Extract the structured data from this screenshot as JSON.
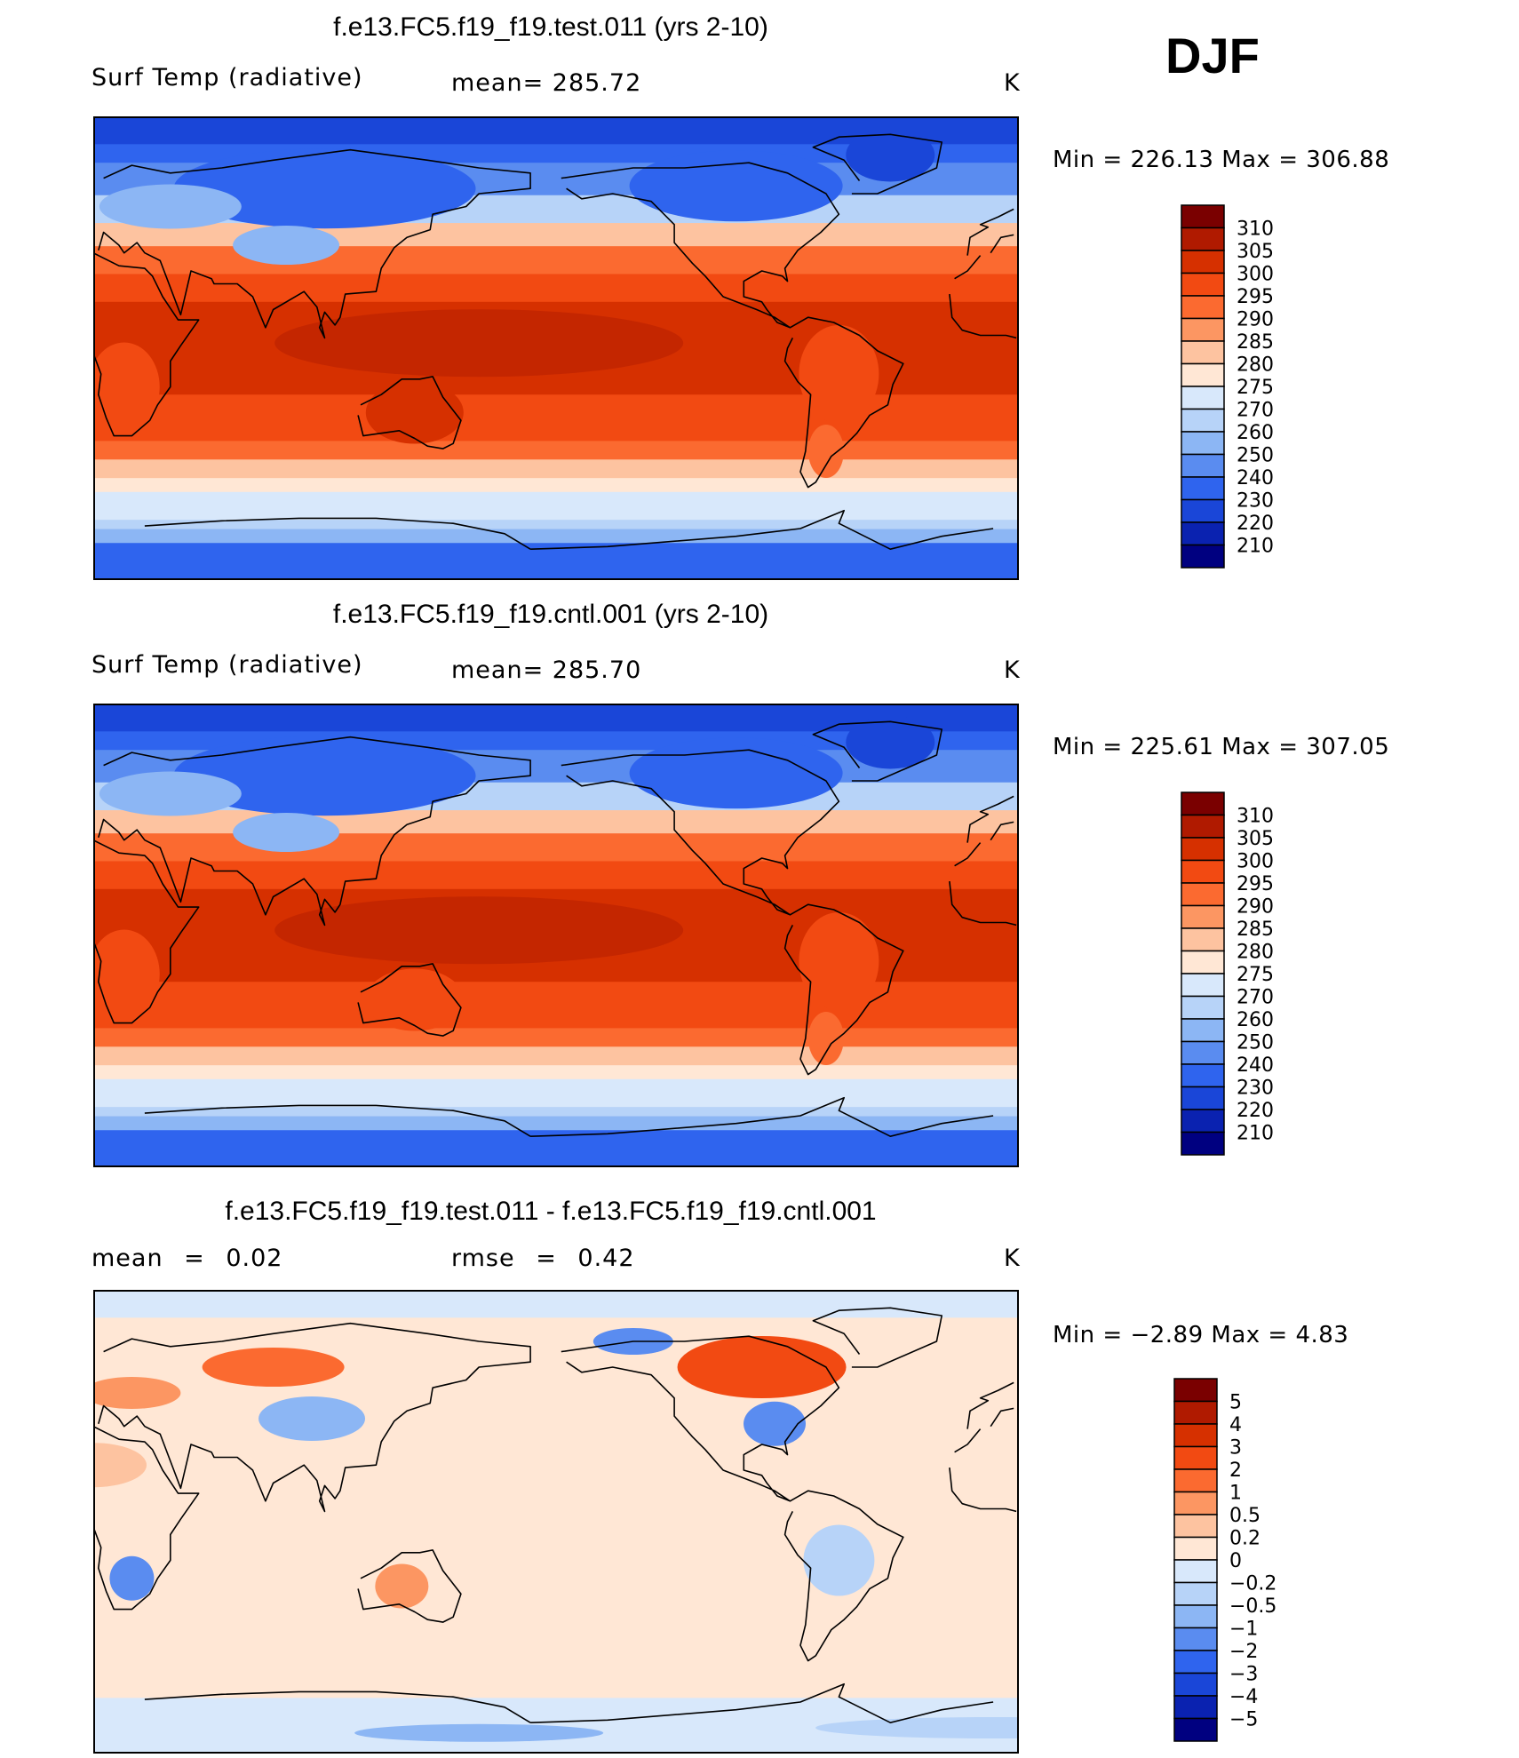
{
  "season": "DJF",
  "panels": [
    {
      "title": "f.e13.FC5.f19_f19.test.011 (yrs 2-10)",
      "left_label": "Surf Temp (radiative)",
      "mid_label": "mean= 285.72",
      "units": "K",
      "minmax": "Min = 226.13 Max = 306.88"
    },
    {
      "title": "f.e13.FC5.f19_f19.cntl.001 (yrs 2-10)",
      "left_label": "Surf Temp (radiative)",
      "mid_label": "mean= 285.70",
      "units": "K",
      "minmax": "Min = 225.61 Max = 307.05"
    },
    {
      "title": "f.e13.FC5.f19_f19.test.011 - f.e13.FC5.f19_f19.cntl.001",
      "left_label": "mean = 0.02",
      "mid_label": "rmse = 0.42",
      "units": "K",
      "minmax": "Min = −2.89 Max = 4.83"
    }
  ],
  "chart_data": [
    {
      "type": "heatmap",
      "title": "f.e13.FC5.f19_f19.test.011 (yrs 2-10)",
      "variable": "Surf Temp (radiative)",
      "units": "K",
      "mean": 285.72,
      "min": 226.13,
      "max": 306.88,
      "legend_labels": [
        "310",
        "305",
        "300",
        "295",
        "290",
        "285",
        "280",
        "275",
        "270",
        "260",
        "250",
        "240",
        "230",
        "220",
        "210"
      ],
      "legend_colors": [
        "#7a0000",
        "#b01a00",
        "#d63000",
        "#f24a12",
        "#fb6a30",
        "#fc9662",
        "#fdc3a0",
        "#ffe7d5",
        "#d8e8fb",
        "#b7d3f8",
        "#8cb6f4",
        "#5a8cf0",
        "#2f64ee",
        "#1a46d8",
        "#0a22b0",
        "#000080"
      ]
    },
    {
      "type": "heatmap",
      "title": "f.e13.FC5.f19_f19.cntl.001 (yrs 2-10)",
      "variable": "Surf Temp (radiative)",
      "units": "K",
      "mean": 285.7,
      "min": 225.61,
      "max": 307.05,
      "legend_labels": [
        "310",
        "305",
        "300",
        "295",
        "290",
        "285",
        "280",
        "275",
        "270",
        "260",
        "250",
        "240",
        "230",
        "220",
        "210"
      ],
      "legend_colors": [
        "#7a0000",
        "#b01a00",
        "#d63000",
        "#f24a12",
        "#fb6a30",
        "#fc9662",
        "#fdc3a0",
        "#ffe7d5",
        "#d8e8fb",
        "#b7d3f8",
        "#8cb6f4",
        "#5a8cf0",
        "#2f64ee",
        "#1a46d8",
        "#0a22b0",
        "#000080"
      ]
    },
    {
      "type": "heatmap",
      "title": "f.e13.FC5.f19_f19.test.011 - f.e13.FC5.f19_f19.cntl.001",
      "units": "K",
      "mean": 0.02,
      "rmse": 0.42,
      "min": -2.89,
      "max": 4.83,
      "legend_labels": [
        "5",
        "4",
        "3",
        "2",
        "1",
        "0.5",
        "0.2",
        "0",
        "−0.2",
        "−0.5",
        "−1",
        "−2",
        "−3",
        "−4",
        "−5"
      ],
      "legend_colors": [
        "#7a0000",
        "#b01a00",
        "#d63000",
        "#f24a12",
        "#fb6a30",
        "#fc9662",
        "#fdc3a0",
        "#ffe7d5",
        "#d8e8fb",
        "#b7d3f8",
        "#8cb6f4",
        "#5a8cf0",
        "#2f64ee",
        "#1a46d8",
        "#0a22b0",
        "#000080"
      ]
    }
  ]
}
